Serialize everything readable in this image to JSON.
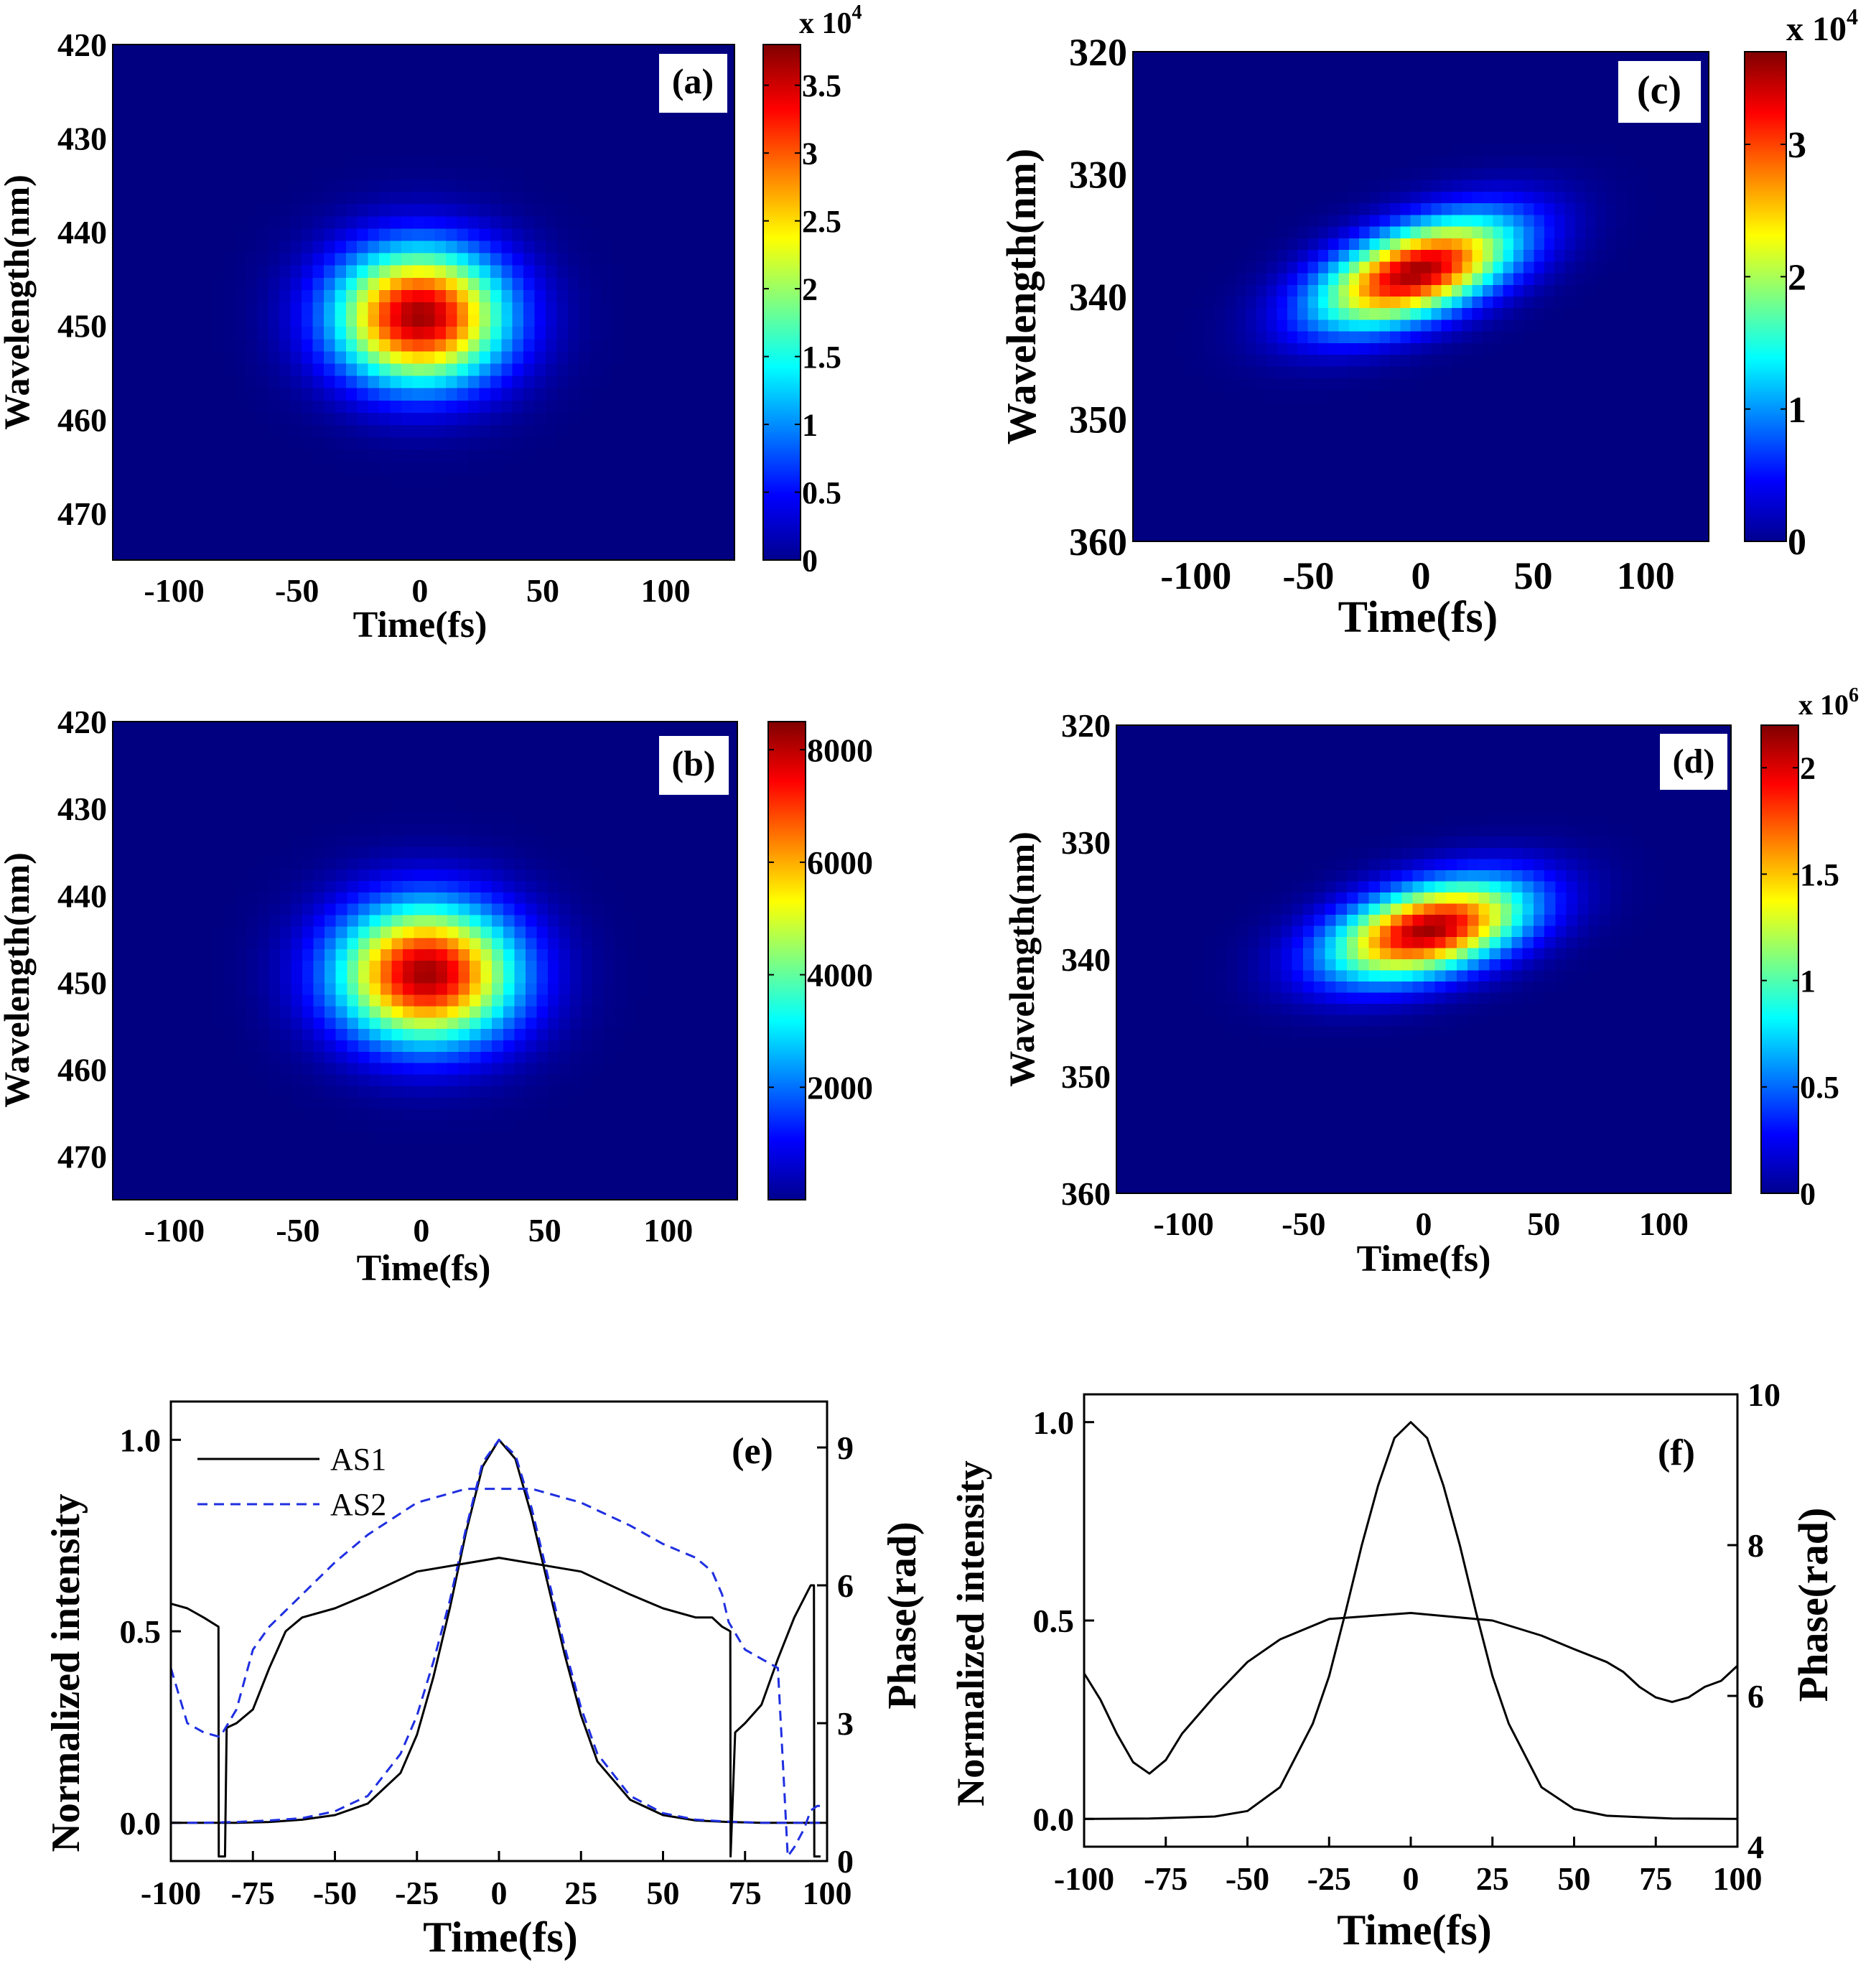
{
  "chart_data": [
    {
      "id": "a",
      "type": "heatmap",
      "panel_label": "(a)",
      "xlabel": "Time(fs)",
      "ylabel": "Wavelength(nm)",
      "xlim": [
        -125,
        128
      ],
      "ylim": [
        420,
        475
      ],
      "y_inverted": true,
      "xticks": [
        -100,
        -50,
        0,
        50,
        100
      ],
      "yticks": [
        420,
        430,
        440,
        450,
        460,
        470
      ],
      "blob": {
        "center_time": 0,
        "center_wavelength": 449,
        "sigma_time": 24,
        "sigma_wavelength": 5,
        "tilt": 0.0,
        "peak": 38000
      },
      "colorbar": {
        "min": 0,
        "max": 38000,
        "ticks": [
          0,
          0.5,
          1,
          1.5,
          2,
          2.5,
          3,
          3.5
        ],
        "tick_labels": [
          "0",
          "0.5",
          "1",
          "1.5",
          "2",
          "2.5",
          "3",
          "3.5"
        ],
        "multiplier": "x 10",
        "exponent": "4"
      }
    },
    {
      "id": "b",
      "type": "heatmap",
      "panel_label": "(b)",
      "xlabel": "Time(fs)",
      "ylabel": "Wavelength(nm)",
      "xlim": [
        -125,
        128
      ],
      "ylim": [
        420,
        475
      ],
      "y_inverted": true,
      "xticks": [
        -100,
        -50,
        0,
        50,
        100
      ],
      "yticks": [
        420,
        430,
        440,
        450,
        460,
        470
      ],
      "blob": {
        "center_time": 2,
        "center_wavelength": 449,
        "sigma_time": 25,
        "sigma_wavelength": 5.5,
        "tilt": 0.0,
        "peak": 8500
      },
      "colorbar": {
        "min": 0,
        "max": 8500,
        "ticks": [
          2000,
          4000,
          6000,
          8000
        ],
        "tick_labels": [
          "2000",
          "4000",
          "6000",
          "8000"
        ],
        "multiplier": "",
        "exponent": ""
      }
    },
    {
      "id": "c",
      "type": "heatmap",
      "panel_label": "(c)",
      "xlabel": "Time(fs)",
      "ylabel": "Wavelength(nm)",
      "xlim": [
        -128,
        128
      ],
      "ylim": [
        320,
        360
      ],
      "y_inverted": true,
      "xticks": [
        -100,
        -50,
        0,
        50,
        100
      ],
      "yticks": [
        320,
        330,
        340,
        350,
        360
      ],
      "blob": {
        "center_time": -2,
        "center_wavelength": 338,
        "sigma_time": 30,
        "sigma_wavelength": 2.6,
        "tilt": -0.055,
        "peak": 37000
      },
      "colorbar": {
        "min": 0,
        "max": 37000,
        "ticks": [
          0,
          1,
          2,
          3
        ],
        "tick_labels": [
          "0",
          "1",
          "2",
          "3"
        ],
        "multiplier": "x 10",
        "exponent": "4"
      }
    },
    {
      "id": "d",
      "type": "heatmap",
      "panel_label": "(d)",
      "xlabel": "Time(fs)",
      "ylabel": "Wavelength(nm)",
      "xlim": [
        -128,
        128
      ],
      "ylim": [
        320,
        360
      ],
      "y_inverted": true,
      "xticks": [
        -100,
        -50,
        0,
        50,
        100
      ],
      "yticks": [
        320,
        330,
        340,
        350,
        360
      ],
      "blob": {
        "center_time": 2,
        "center_wavelength": 337.5,
        "sigma_time": 28,
        "sigma_wavelength": 2.6,
        "tilt": -0.045,
        "peak": 2200000
      },
      "colorbar": {
        "min": 0,
        "max": 2200000,
        "ticks": [
          0,
          0.5,
          1,
          1.5,
          2
        ],
        "tick_labels": [
          "0",
          "0.5",
          "1",
          "1.5",
          "2"
        ],
        "multiplier": "x 10",
        "exponent": "6"
      }
    },
    {
      "id": "e",
      "type": "line",
      "panel_label": "(e)",
      "xlabel": "Time(fs)",
      "ylabel": "Normalized intensity",
      "y2label": "Phase(rad)",
      "xlim": [
        -100,
        100
      ],
      "ylim": [
        -0.1,
        1.1
      ],
      "y2lim": [
        0,
        10
      ],
      "xticks": [
        -100,
        -75,
        -50,
        -25,
        0,
        25,
        50,
        75,
        100
      ],
      "yticks": [
        0.0,
        0.5,
        1.0
      ],
      "ytick_labels": [
        "0.0",
        "0.5",
        "1.0"
      ],
      "y2ticks": [
        0,
        3,
        6,
        9
      ],
      "y2tick_labels": [
        "0",
        "3",
        "6",
        "9"
      ],
      "series": [
        {
          "name": "AS1",
          "style": "solid",
          "color": "#000000",
          "axis": "y",
          "x": [
            -100,
            -90,
            -80,
            -70,
            -60,
            -50,
            -40,
            -30,
            -25,
            -20,
            -15,
            -10,
            -5,
            0,
            5,
            10,
            15,
            20,
            25,
            30,
            40,
            50,
            60,
            70,
            80,
            90,
            100
          ],
          "y": [
            0,
            0,
            0,
            0.002,
            0.008,
            0.02,
            0.05,
            0.13,
            0.23,
            0.38,
            0.56,
            0.76,
            0.93,
            1.0,
            0.95,
            0.8,
            0.62,
            0.44,
            0.28,
            0.16,
            0.06,
            0.02,
            0.006,
            0.002,
            0,
            0,
            0
          ]
        },
        {
          "name": "AS2",
          "style": "dashed",
          "color": "#1f2fe0",
          "axis": "y",
          "x": [
            -100,
            -90,
            -80,
            -70,
            -60,
            -50,
            -40,
            -30,
            -25,
            -20,
            -15,
            -10,
            -5,
            0,
            5,
            10,
            15,
            20,
            25,
            30,
            40,
            50,
            60,
            70,
            80,
            90,
            100
          ],
          "y": [
            0,
            0,
            0.002,
            0.006,
            0.012,
            0.03,
            0.07,
            0.18,
            0.28,
            0.42,
            0.58,
            0.77,
            0.94,
            1.0,
            0.96,
            0.82,
            0.64,
            0.46,
            0.3,
            0.18,
            0.07,
            0.025,
            0.008,
            0.003,
            0,
            0,
            0
          ]
        },
        {
          "name": "",
          "style": "solid",
          "color": "#000000",
          "axis": "y2",
          "x": [
            -100,
            -95,
            -90,
            -85.5,
            -85.4,
            -83.5,
            -83,
            -80,
            -75,
            -70,
            -65,
            -60,
            -50,
            -40,
            -25,
            0,
            25,
            40,
            50,
            60,
            65,
            68,
            70.5,
            70.6,
            72,
            75,
            80,
            85,
            90,
            95,
            96,
            96.1,
            98
          ],
          "y": [
            5.6,
            5.5,
            5.3,
            5.1,
            0.1,
            0.1,
            2.9,
            3.0,
            3.3,
            4.2,
            5.0,
            5.3,
            5.5,
            5.8,
            6.3,
            6.6,
            6.3,
            5.8,
            5.5,
            5.3,
            5.3,
            5.1,
            5.0,
            0.1,
            2.8,
            3.0,
            3.4,
            4.4,
            5.3,
            6.0,
            6.0,
            0.1,
            0.1
          ]
        },
        {
          "name": "",
          "style": "dashed",
          "color": "#1f2fe0",
          "axis": "y2",
          "x": [
            -100,
            -95,
            -90,
            -85,
            -80,
            -75,
            -70,
            -60,
            -50,
            -40,
            -25,
            -10,
            0,
            10,
            25,
            40,
            50,
            60,
            65,
            68,
            70,
            75,
            80,
            85,
            87,
            88,
            90,
            93,
            95,
            97,
            100
          ],
          "y": [
            4.2,
            3.0,
            2.8,
            2.7,
            3.3,
            4.6,
            5.1,
            5.8,
            6.5,
            7.1,
            7.8,
            8.1,
            8.1,
            8.1,
            7.8,
            7.3,
            6.9,
            6.6,
            6.3,
            5.8,
            5.2,
            4.6,
            4.4,
            4.2,
            1.5,
            0.1,
            0.3,
            0.7,
            1.1,
            1.2,
            1.2
          ]
        }
      ]
    },
    {
      "id": "f",
      "type": "line",
      "panel_label": "(f)",
      "xlabel": "Time(fs)",
      "ylabel": "Normalized intensity",
      "y2label": "Phase(rad)",
      "xlim": [
        -100,
        100
      ],
      "ylim": [
        -0.07,
        1.07
      ],
      "y2lim": [
        4,
        10
      ],
      "xticks": [
        -100,
        -75,
        -50,
        -25,
        0,
        25,
        50,
        75,
        100
      ],
      "yticks": [
        0.0,
        0.5,
        1.0
      ],
      "ytick_labels": [
        "0.0",
        "0.5",
        "1.0"
      ],
      "y2ticks": [
        4,
        6,
        8,
        10
      ],
      "y2tick_labels": [
        "4",
        "6",
        "8",
        "10"
      ],
      "series": [
        {
          "name": "",
          "style": "solid",
          "color": "#000000",
          "axis": "y",
          "x": [
            -100,
            -80,
            -60,
            -50,
            -40,
            -30,
            -25,
            -20,
            -15,
            -10,
            -5,
            0,
            5,
            10,
            15,
            20,
            25,
            30,
            40,
            50,
            60,
            80,
            100
          ],
          "y": [
            0,
            0.001,
            0.006,
            0.02,
            0.08,
            0.24,
            0.36,
            0.52,
            0.69,
            0.84,
            0.96,
            1.0,
            0.96,
            0.84,
            0.69,
            0.52,
            0.36,
            0.24,
            0.08,
            0.025,
            0.008,
            0.001,
            0
          ]
        },
        {
          "name": "",
          "style": "solid",
          "color": "#000000",
          "axis": "y2",
          "x": [
            -100,
            -95,
            -90,
            -85,
            -80,
            -75,
            -70,
            -60,
            -50,
            -40,
            -25,
            0,
            25,
            40,
            50,
            60,
            65,
            70,
            75,
            80,
            85,
            90,
            95,
            100
          ],
          "y": [
            6.3,
            5.95,
            5.5,
            5.12,
            4.97,
            5.15,
            5.5,
            6.0,
            6.45,
            6.75,
            7.02,
            7.1,
            7.0,
            6.8,
            6.62,
            6.45,
            6.32,
            6.12,
            5.98,
            5.92,
            5.98,
            6.12,
            6.2,
            6.4
          ]
        }
      ]
    }
  ]
}
